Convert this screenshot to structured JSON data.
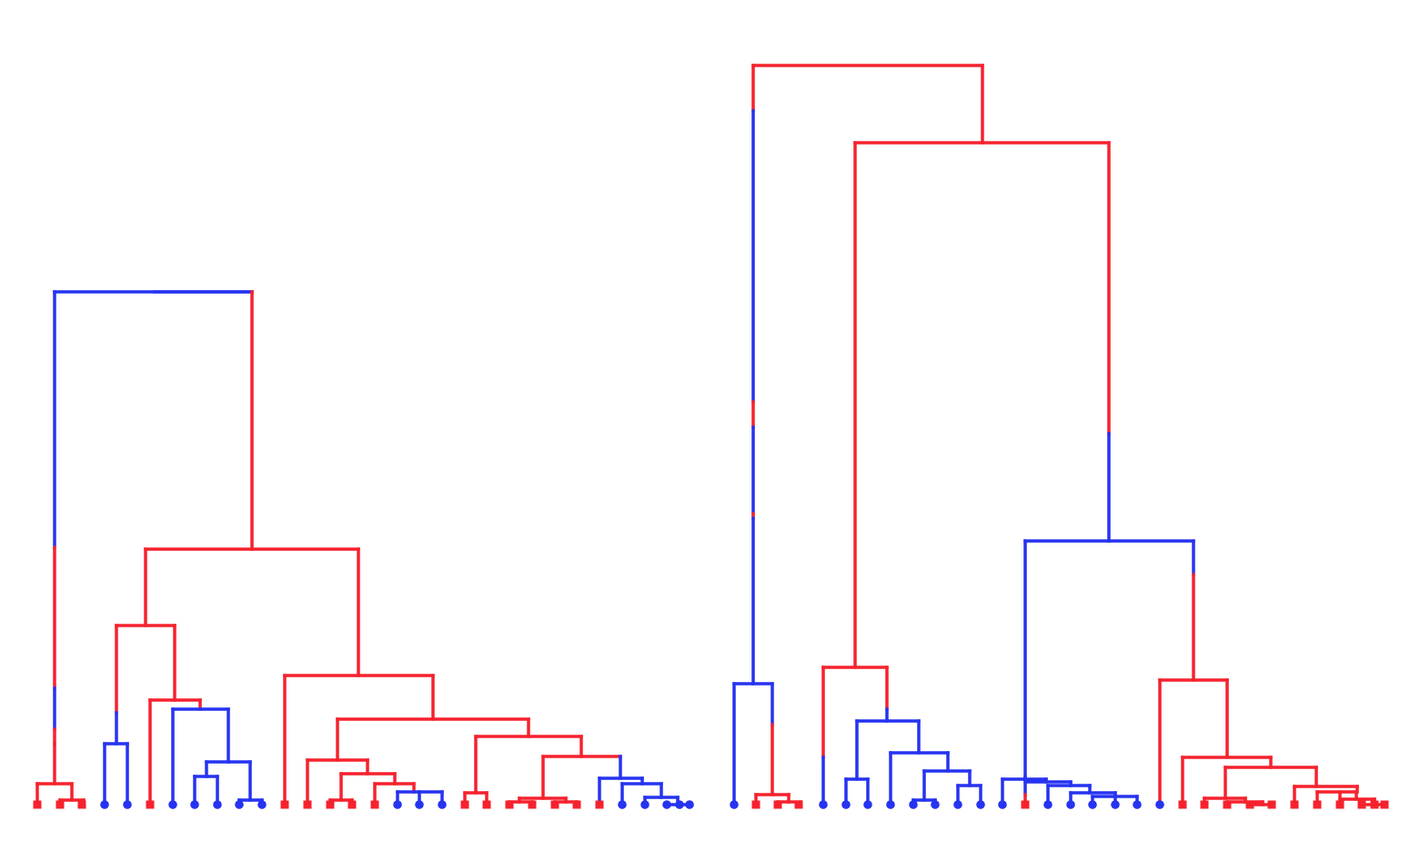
{
  "colors": {
    "red": "#f5222e",
    "blue": "#2633f0",
    "background": "#ffffff"
  },
  "legend": "none",
  "axes": "none",
  "leaves": {
    "tree1": [
      "red",
      "red",
      "red",
      "blue",
      "blue",
      "red",
      "blue",
      "blue",
      "blue",
      "blue",
      "blue",
      "red",
      "red",
      "red",
      "red",
      "red",
      "blue",
      "blue",
      "blue",
      "red",
      "red",
      "red",
      "red",
      "red",
      "red",
      "red",
      "blue",
      "blue",
      "blue",
      "blue",
      "blue"
    ],
    "tree2": [
      "blue",
      "red",
      "red",
      "red",
      "blue",
      "blue",
      "blue",
      "blue",
      "blue",
      "blue",
      "blue",
      "blue",
      "blue",
      "red",
      "blue",
      "blue",
      "blue",
      "blue",
      "blue",
      "blue",
      "red",
      "red",
      "red",
      "red",
      "red",
      "red",
      "red",
      "red",
      "red",
      "red",
      "red"
    ]
  }
}
